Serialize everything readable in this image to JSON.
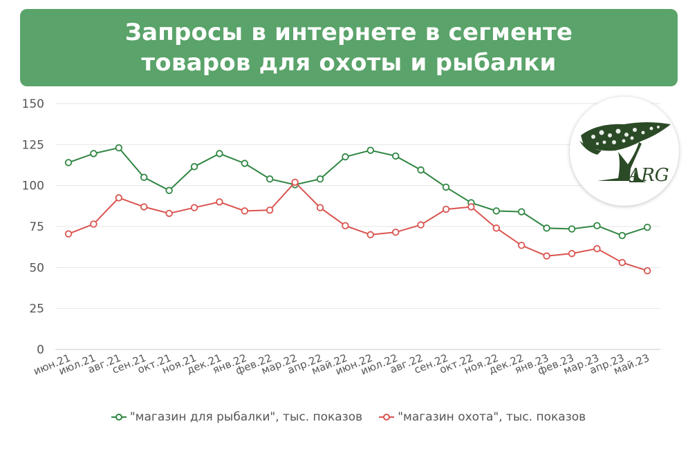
{
  "title": {
    "line1": "Запросы в интернете в сегменте",
    "line2": "товаров для охоты и рыбалки"
  },
  "logo": {
    "text": "ARG",
    "color": "#2b4a26"
  },
  "chart_data": {
    "type": "line",
    "categories": [
      "июн.21",
      "июл.21",
      "авг.21",
      "сен.21",
      "окт.21",
      "ноя.21",
      "дек.21",
      "янв.22",
      "фев.22",
      "мар.22",
      "апр.22",
      "май.22",
      "июн.22",
      "июл.22",
      "авг.22",
      "сен.22",
      "окт.22",
      "ноя.22",
      "дек.22",
      "янв.23",
      "фев.23",
      "мар.23",
      "апр.23",
      "май.23"
    ],
    "yticks": [
      "0",
      "25",
      "50",
      "75",
      "100",
      "125",
      "150"
    ],
    "ylim": [
      0,
      150
    ],
    "grid": true,
    "legend_position": "bottom",
    "series": [
      {
        "name": "\"магазин для рыбалки\", тыс. показов",
        "color": "#2e8540",
        "values": [
          114,
          119.5,
          123,
          105,
          97,
          111.5,
          119.5,
          113.5,
          104,
          100.5,
          104,
          117.5,
          121.5,
          118,
          109.5,
          99,
          89.5,
          84.5,
          84,
          74,
          73.5,
          75.5,
          69.5,
          74.5
        ]
      },
      {
        "name": "\"магазин охота\", тыс. показов",
        "color": "#d9534f",
        "values": [
          70.5,
          76.5,
          92.5,
          87,
          83,
          86.5,
          90,
          84.5,
          85,
          102,
          86.5,
          75.5,
          70,
          71.5,
          76,
          85.5,
          87,
          74,
          63.5,
          57,
          58.5,
          61.5,
          53,
          48
        ]
      }
    ]
  }
}
